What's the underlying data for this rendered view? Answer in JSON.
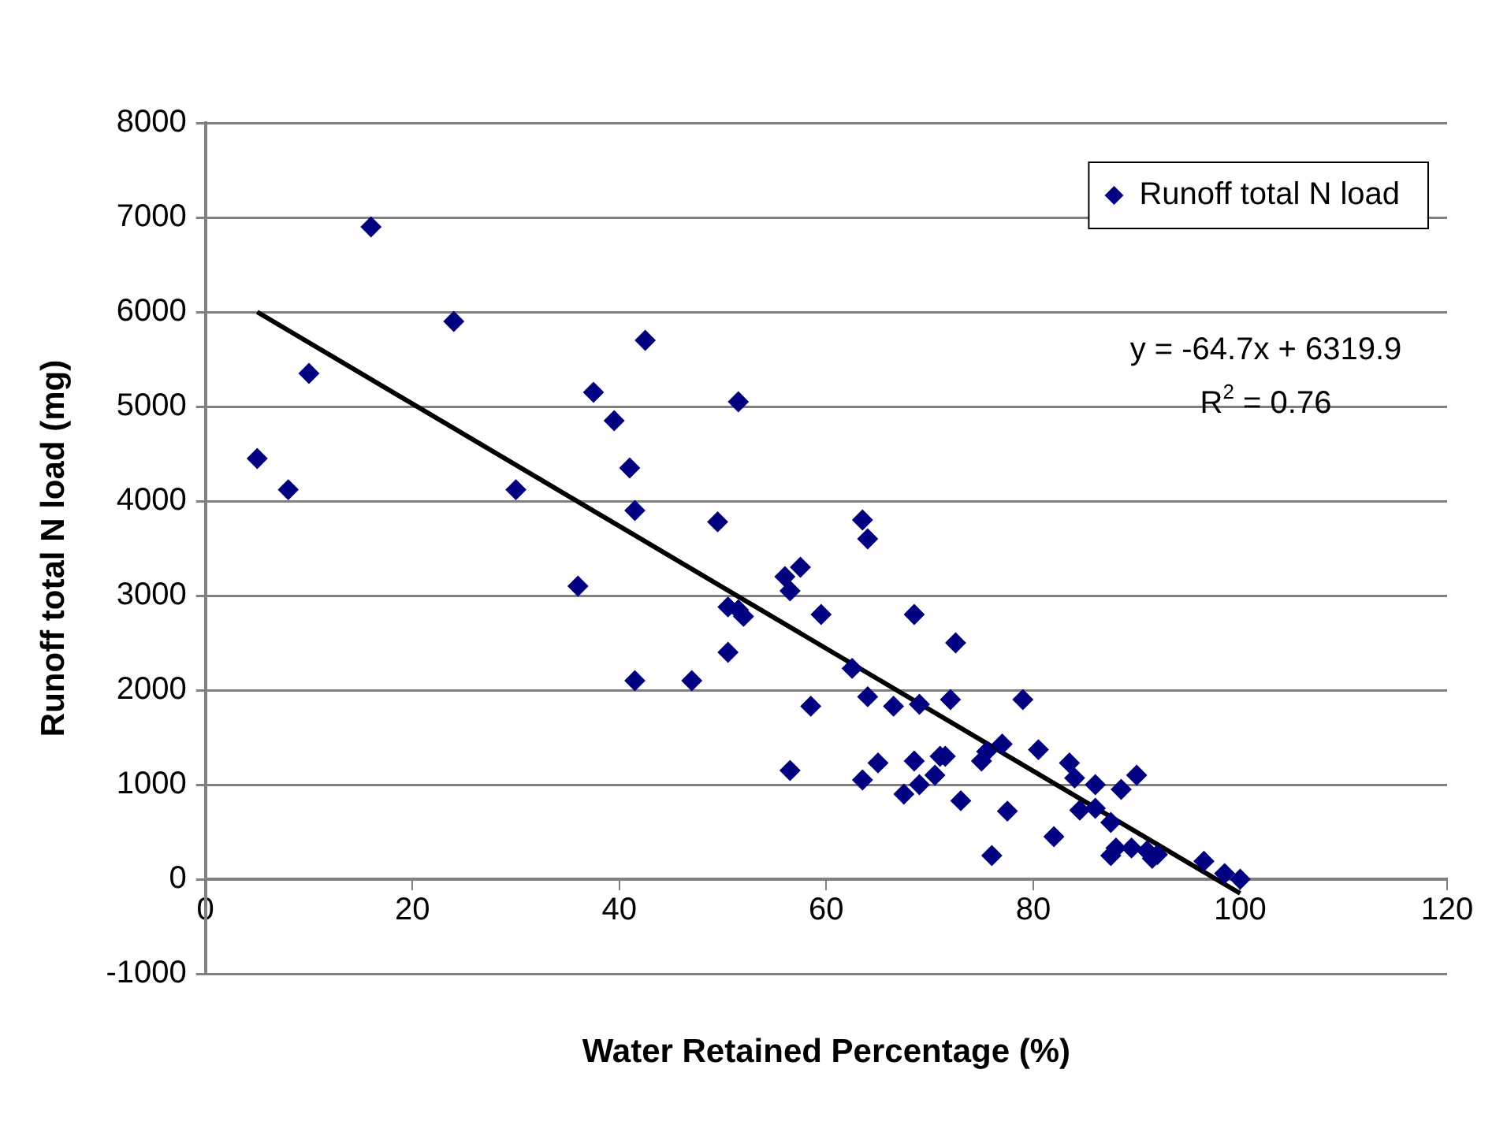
{
  "chart_data": {
    "type": "scatter",
    "xlabel": "Water Retained Percentage (%)",
    "ylabel": "Runoff total N load (mg)",
    "xlim": [
      0,
      120
    ],
    "xticks": [
      0,
      20,
      40,
      60,
      80,
      100,
      120
    ],
    "ylim": [
      -1000,
      8000
    ],
    "yticks": [
      -1000,
      0,
      1000,
      2000,
      3000,
      4000,
      5000,
      6000,
      7000,
      8000
    ],
    "grid": "y",
    "legend": "top right",
    "marker": "diamond",
    "annotations": [
      "y = -64.7x + 6319.9",
      "R$^{2}$ = 0.76"
    ],
    "series": [
      {
        "name": "Runoff total N load",
        "color": "#000080",
        "x": [
          5,
          8,
          10,
          16,
          24,
          30,
          36,
          37.5,
          39.5,
          41,
          41.5,
          41.5,
          42.5,
          47,
          49.5,
          50.5,
          50.5,
          51.5,
          51.5,
          52,
          56,
          56.5,
          56.5,
          57.5,
          58.5,
          59.5,
          62.5,
          63.5,
          63.5,
          64,
          64,
          65,
          66.5,
          67.5,
          68.5,
          68.5,
          69,
          69,
          70.5,
          71,
          71.5,
          72,
          72.5,
          73,
          75,
          75.5,
          76,
          77,
          77.5,
          79,
          80.5,
          82,
          83.5,
          84,
          84.5,
          86,
          86,
          87.5,
          87.5,
          88,
          88.5,
          89.5,
          90,
          91,
          91.5,
          92,
          96.5,
          98.5,
          100
        ],
        "values": [
          4450,
          4120,
          5350,
          6900,
          5900,
          4120,
          3100,
          5150,
          4850,
          4350,
          3900,
          2100,
          5700,
          2100,
          3780,
          2880,
          2400,
          5050,
          2850,
          2780,
          3200,
          3050,
          1150,
          3300,
          1830,
          2800,
          2230,
          3800,
          1050,
          3600,
          1930,
          1230,
          1830,
          900,
          2800,
          1250,
          1850,
          1000,
          1100,
          1300,
          1300,
          1900,
          2500,
          830,
          1250,
          1350,
          250,
          1430,
          720,
          1900,
          1370,
          450,
          1230,
          1070,
          730,
          1000,
          750,
          250,
          600,
          330,
          950,
          330,
          1100,
          300,
          220,
          260,
          190,
          60,
          0
        ]
      },
      {
        "type": "line",
        "marker": "none",
        "color": "#000000",
        "x": [
          5,
          100
        ],
        "values": [
          6000,
          -150
        ]
      }
    ]
  }
}
